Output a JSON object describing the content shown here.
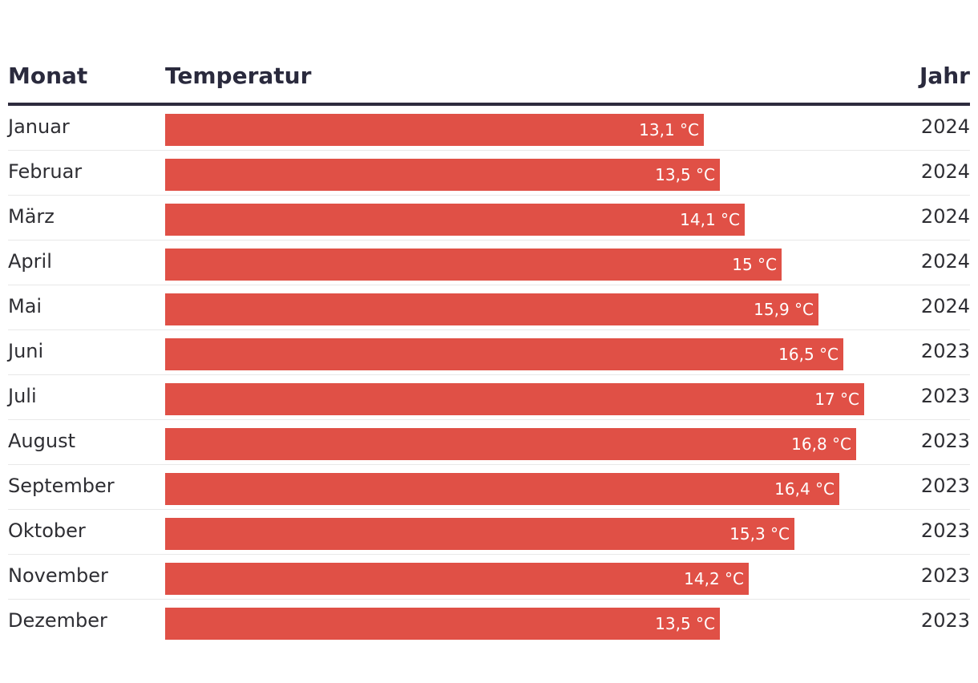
{
  "table": {
    "columns": {
      "month": "Monat",
      "temperature": "Temperatur",
      "year": "Jahr"
    }
  },
  "chart_data": {
    "type": "bar",
    "orientation": "horizontal",
    "categories": [
      "Januar",
      "Februar",
      "März",
      "April",
      "Mai",
      "Juni",
      "Juli",
      "August",
      "September",
      "Oktober",
      "November",
      "Dezember"
    ],
    "values": [
      13.1,
      13.5,
      14.1,
      15.0,
      15.9,
      16.5,
      17.0,
      16.8,
      16.4,
      15.3,
      14.2,
      13.5
    ],
    "value_labels": [
      "13,1 °C",
      "13,5 °C",
      "14,1 °C",
      "15 °C",
      "15,9 °C",
      "16,5 °C",
      "17 °C",
      "16,8 °C",
      "16,4 °C",
      "15,3 °C",
      "14,2 °C",
      "13,5 °C"
    ],
    "years": [
      "2024",
      "2024",
      "2024",
      "2024",
      "2024",
      "2023",
      "2023",
      "2023",
      "2023",
      "2023",
      "2023",
      "2023"
    ],
    "xlim": [
      0,
      19.5
    ],
    "bar_color": "#e05046",
    "title": "",
    "xlabel": "",
    "ylabel": ""
  }
}
